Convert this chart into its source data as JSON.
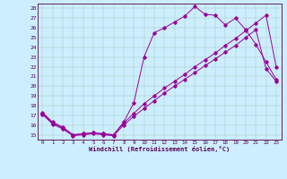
{
  "xlabel": "Windchill (Refroidissement éolien,°C)",
  "bg_color": "#cceeff",
  "grid_color": "#aaccbb",
  "line_color": "#990099",
  "xlim": [
    -0.5,
    23.5
  ],
  "ylim": [
    14.5,
    28.5
  ],
  "xticks": [
    0,
    1,
    2,
    3,
    4,
    5,
    6,
    7,
    8,
    9,
    10,
    11,
    12,
    13,
    14,
    15,
    16,
    17,
    18,
    19,
    20,
    21,
    22,
    23
  ],
  "yticks": [
    15,
    16,
    17,
    18,
    19,
    20,
    21,
    22,
    23,
    24,
    25,
    26,
    27,
    28
  ],
  "line1_x": [
    0,
    1,
    2,
    3,
    4,
    5,
    6,
    7,
    8,
    9,
    10,
    11,
    12,
    13,
    14,
    15,
    16,
    17,
    18,
    19,
    20,
    21,
    22,
    23
  ],
  "line1_y": [
    17.3,
    16.3,
    15.8,
    15.0,
    15.1,
    15.2,
    15.1,
    15.0,
    16.3,
    18.3,
    23.0,
    25.5,
    26.0,
    26.6,
    27.2,
    28.2,
    27.4,
    27.3,
    26.3,
    27.0,
    25.8,
    24.3,
    22.5,
    20.7
  ],
  "line2_x": [
    0,
    1,
    2,
    3,
    4,
    5,
    6,
    7,
    8,
    9,
    10,
    11,
    12,
    13,
    14,
    15,
    16,
    17,
    18,
    19,
    20,
    21,
    22,
    23
  ],
  "line2_y": [
    17.2,
    16.2,
    15.7,
    15.0,
    15.1,
    15.2,
    15.1,
    15.0,
    16.2,
    17.2,
    18.2,
    19.0,
    19.8,
    20.5,
    21.2,
    22.0,
    22.7,
    23.4,
    24.2,
    24.9,
    25.7,
    26.5,
    27.3,
    22.0
  ],
  "line3_x": [
    0,
    1,
    2,
    3,
    4,
    5,
    6,
    7,
    8,
    9,
    10,
    11,
    12,
    13,
    14,
    15,
    16,
    17,
    18,
    19,
    20,
    21,
    22,
    23
  ],
  "line3_y": [
    17.1,
    16.1,
    15.6,
    14.9,
    15.0,
    15.1,
    15.0,
    14.9,
    16.0,
    16.9,
    17.7,
    18.5,
    19.3,
    20.0,
    20.7,
    21.4,
    22.1,
    22.8,
    23.5,
    24.2,
    25.0,
    25.8,
    21.8,
    20.5
  ],
  "tick_fontsize": 4.2,
  "xlabel_fontsize": 5.0
}
